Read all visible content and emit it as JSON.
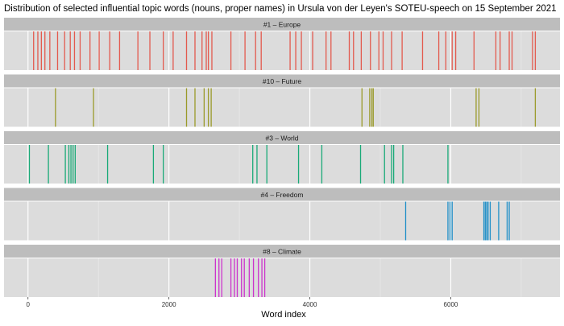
{
  "chart_data": {
    "type": "strip",
    "title": "Distribution of selected influential topic words (nouns, proper names) in Ursula von der Leyen's SOTEU-speech on 15 September 2021",
    "xlabel": "Word index",
    "ylabel": "",
    "xlim": [
      -340,
      7550
    ],
    "x_ticks": [
      0,
      2000,
      4000,
      6000
    ],
    "x_tick_labels": [
      "0",
      "2000",
      "4000",
      "6000"
    ],
    "grid": true,
    "panels": [
      {
        "label": "#1 – Europe",
        "color": "#e35a4e",
        "values": [
          80,
          140,
          190,
          240,
          310,
          420,
          520,
          600,
          660,
          740,
          880,
          1010,
          1160,
          1300,
          1560,
          1730,
          1920,
          2060,
          2250,
          2370,
          2470,
          2530,
          2560,
          2610,
          2880,
          3080,
          3230,
          3310,
          3720,
          3800,
          3880,
          4040,
          4230,
          4300,
          4560,
          4620,
          4730,
          4860,
          4980,
          5040,
          5160,
          5310,
          5600,
          5830,
          5930,
          6020,
          6070,
          6330,
          6640,
          6700,
          6830,
          6870,
          7160,
          7200
        ]
      },
      {
        "label": "#10 – Future",
        "color": "#9a9a2a",
        "values": [
          390,
          930,
          2250,
          2370,
          2500,
          2560,
          2600,
          4740,
          4850,
          4880,
          4900,
          6360,
          6400,
          7200
        ]
      },
      {
        "label": "#3 – World",
        "color": "#1aaa78",
        "values": [
          20,
          290,
          530,
          580,
          610,
          640,
          670,
          1130,
          1780,
          1920,
          3190,
          3250,
          3390,
          3840,
          4170,
          4720,
          5060,
          5160,
          5190,
          5320,
          5960
        ]
      },
      {
        "label": "#4 – Freedom",
        "color": "#1f8fc8",
        "values": [
          5360,
          5960,
          5990,
          6020,
          6470,
          6490,
          6510,
          6530,
          6560,
          6680,
          6800,
          6830
        ]
      },
      {
        "label": "#8 – Climate",
        "color": "#cc33cc",
        "values": [
          2660,
          2710,
          2750,
          2880,
          2930,
          2970,
          3030,
          3070,
          3140,
          3200,
          3270,
          3320,
          3360
        ]
      }
    ]
  }
}
